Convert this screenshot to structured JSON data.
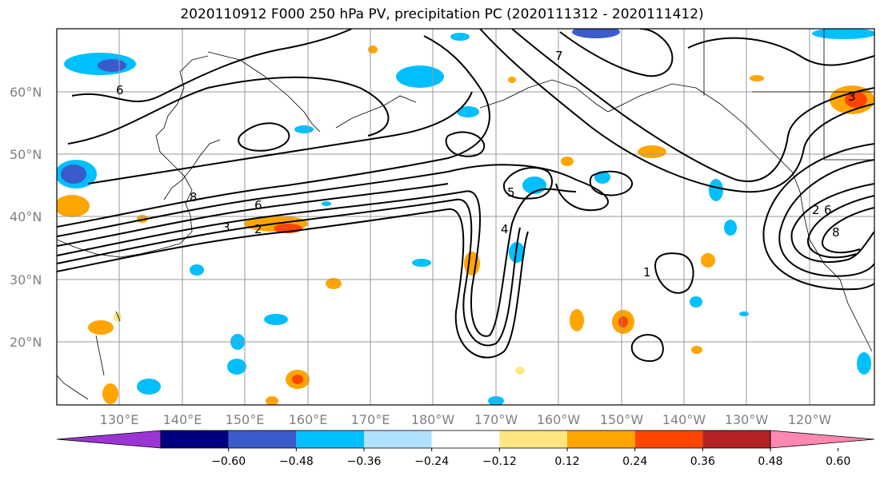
{
  "title": "2020110912 F000 250 hPa PV, precipitation PC (2020111312 - 2020111412)",
  "lat_labels": [
    "60°N",
    "50°N",
    "40°N",
    "30°N",
    "20°N"
  ],
  "lon_labels": [
    "130°E",
    "140°E",
    "150°E",
    "160°E",
    "170°E",
    "180°W",
    "170°W",
    "160°W",
    "150°W",
    "140°W",
    "130°W",
    "120°W"
  ],
  "colorbar": {
    "ticks": [
      "−0.60",
      "−0.48",
      "−0.36",
      "−0.24",
      "−0.12",
      "0.12",
      "0.24",
      "0.36",
      "0.48",
      "0.60"
    ],
    "colors": [
      "#9a35d4",
      "#000080",
      "#3a5bcc",
      "#00bfff",
      "#b0e2ff",
      "#ffffff",
      "#ffe680",
      "#ffa500",
      "#ff4500",
      "#b22222",
      "#ff88b0"
    ]
  },
  "contour_labels": [
    "3",
    "2",
    "6",
    "8",
    "5",
    "4",
    "1",
    "7",
    "6",
    "3",
    "2",
    "6",
    "8"
  ]
}
